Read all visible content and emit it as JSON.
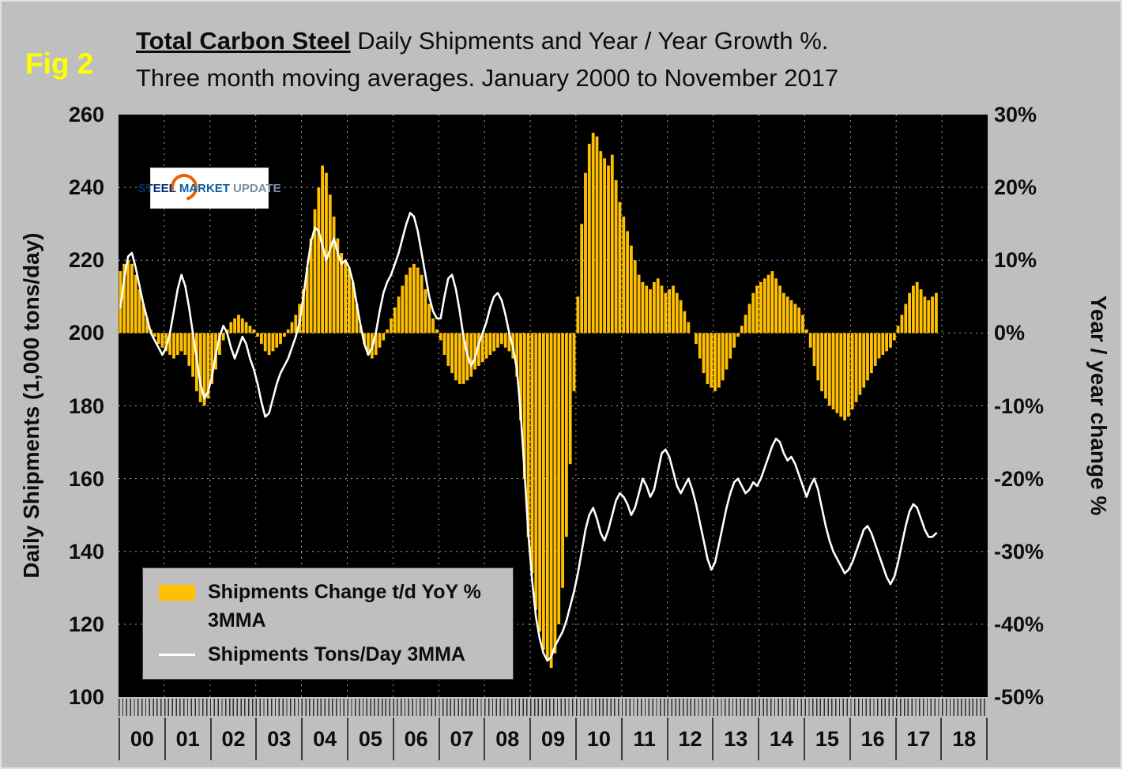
{
  "fig_label": "Fig 2",
  "title": {
    "line1_bold": "Total Carbon Steel",
    "line1_rest": " Daily Shipments and Year / Year Growth %.",
    "line2": "Three month moving averages. January 2000 to November 2017"
  },
  "logo": {
    "word1": "STEEL",
    "word2": "MARKET",
    "word3": "UPDATE"
  },
  "legend": {
    "items": [
      {
        "label": "Shipments Change t/d YoY %",
        "label2": "3MMA"
      },
      {
        "label": "Shipments Tons/Day 3MMA"
      }
    ]
  },
  "left_axis": {
    "title": "Daily Shipments (1,000 tons/day)",
    "ticks": [
      "260",
      "240",
      "220",
      "200",
      "180",
      "160",
      "140",
      "120",
      "100"
    ]
  },
  "right_axis": {
    "title": "Year / year change %",
    "ticks": [
      "30%",
      "20%",
      "10%",
      "0%",
      "-10%",
      "-20%",
      "-30%",
      "-40%",
      "-50%"
    ]
  },
  "x_axis": {
    "years": [
      "00",
      "01",
      "02",
      "03",
      "04",
      "05",
      "06",
      "07",
      "08",
      "09",
      "10",
      "11",
      "12",
      "13",
      "14",
      "15",
      "16",
      "17",
      "18"
    ]
  },
  "colors": {
    "page_bg": "#bfbfbf",
    "plot_bg": "#000000",
    "bar": "#FFC000",
    "line": "#FFFFFF",
    "fig_label": "#FFFF00"
  },
  "chart_data": {
    "type": "combo",
    "frequency": "monthly",
    "start": "2000-01",
    "end": "2017-11",
    "title": "Total Carbon Steel Daily Shipments and Year / Year Growth %. Three month moving averages. January 2000 to November 2017",
    "x_years": [
      "00",
      "01",
      "02",
      "03",
      "04",
      "05",
      "06",
      "07",
      "08",
      "09",
      "10",
      "11",
      "12",
      "13",
      "14",
      "15",
      "16",
      "17",
      "18"
    ],
    "left_axis": {
      "label": "Daily Shipments (1,000 tons/day)",
      "min": 100,
      "max": 260,
      "tick_step": 20
    },
    "right_axis": {
      "label": "Year / year change %",
      "min": -50,
      "max": 30,
      "tick_step": 10
    },
    "grid": true,
    "legend_position": "inside-bottom-left",
    "series": [
      {
        "name": "Shipments Change t/d YoY % 3MMA",
        "type": "bar",
        "axis": "right",
        "color": "#FFC000",
        "values": [
          8.5,
          9.5,
          10,
          9.5,
          8,
          6,
          4,
          2,
          0.5,
          -0.5,
          -1.5,
          -2,
          -2.5,
          -3,
          -3.5,
          -3,
          -2.5,
          -3,
          -4.5,
          -6,
          -8,
          -9.5,
          -10,
          -9,
          -7,
          -5,
          -3,
          -1,
          0.5,
          1.5,
          2,
          2.5,
          2,
          1.5,
          1,
          0.5,
          -0.5,
          -1.5,
          -2.5,
          -3,
          -2.5,
          -2,
          -1.5,
          -0.5,
          0.5,
          1.5,
          2.5,
          4,
          6,
          9,
          13,
          17,
          20,
          23,
          22,
          19,
          16,
          13,
          11,
          10,
          9,
          7,
          4,
          1,
          -1.5,
          -3,
          -3.5,
          -3,
          -2,
          -1,
          0.5,
          2,
          3.5,
          5,
          6.5,
          8,
          9,
          9.5,
          9,
          8,
          6,
          4,
          2,
          0.5,
          -1,
          -3,
          -4.5,
          -5.5,
          -6.5,
          -7,
          -7,
          -6.5,
          -6,
          -5,
          -4.5,
          -4,
          -3.5,
          -3,
          -2.5,
          -2,
          -1.5,
          -2,
          -2.5,
          -3.5,
          -6,
          -12,
          -20,
          -28,
          -33,
          -38,
          -41,
          -43.5,
          -45,
          -46,
          -44,
          -40,
          -35,
          -28,
          -18,
          -8,
          5,
          15,
          22,
          26,
          27.5,
          27,
          25,
          24,
          23,
          24.5,
          21,
          18,
          16,
          14,
          12,
          10,
          8,
          7,
          6.5,
          6,
          7,
          7.5,
          6.5,
          5.5,
          6,
          6.5,
          5.5,
          4.5,
          3,
          1.5,
          0,
          -1.5,
          -3.5,
          -5.5,
          -7,
          -7.5,
          -8,
          -7.5,
          -6.5,
          -5,
          -3.5,
          -2,
          -0.5,
          1,
          2.5,
          4,
          5.5,
          6.5,
          7,
          7.5,
          8,
          8.5,
          7.5,
          6.5,
          5.5,
          5,
          4.5,
          4,
          3.5,
          2.5,
          0.5,
          -2,
          -4.5,
          -6.5,
          -8,
          -9,
          -10,
          -10.5,
          -11,
          -11.5,
          -12,
          -11.5,
          -10.5,
          -9.5,
          -8.5,
          -7.5,
          -6.5,
          -5.5,
          -4.5,
          -3.5,
          -3,
          -2.5,
          -2,
          -1,
          1,
          2.5,
          4,
          5.5,
          6.5,
          7,
          6,
          5,
          4.5,
          5,
          5.5
        ]
      },
      {
        "name": "Shipments Tons/Day 3MMA",
        "type": "line",
        "axis": "left",
        "color": "#FFFFFF",
        "values": [
          207,
          215,
          221,
          222,
          218,
          213,
          208,
          204,
          200,
          198,
          196,
          194,
          196,
          200,
          206,
          212,
          216,
          213,
          207,
          200,
          193,
          186,
          182,
          184,
          188,
          194,
          199,
          202,
          200,
          196,
          193,
          196,
          199,
          197,
          193,
          190,
          186,
          181,
          177,
          178,
          182,
          186,
          189,
          191,
          193,
          196,
          199,
          203,
          210,
          218,
          225,
          229,
          228,
          224,
          220,
          223,
          226,
          222,
          219,
          220,
          218,
          214,
          208,
          202,
          197,
          194,
          196,
          200,
          206,
          211,
          214,
          216,
          219,
          222,
          226,
          230,
          233,
          232,
          228,
          222,
          216,
          210,
          206,
          204,
          204,
          210,
          215,
          216,
          212,
          206,
          199,
          194,
          191,
          193,
          197,
          200,
          203,
          207,
          210,
          211,
          209,
          205,
          200,
          196,
          190,
          178,
          162,
          145,
          132,
          122,
          116,
          112,
          110,
          111,
          114,
          116,
          118,
          121,
          125,
          129,
          134,
          140,
          146,
          150,
          152,
          149,
          145,
          143,
          146,
          150,
          154,
          156,
          155,
          153,
          150,
          152,
          156,
          160,
          158,
          155,
          157,
          162,
          167,
          168,
          166,
          162,
          158,
          156,
          158,
          160,
          157,
          153,
          148,
          143,
          138,
          135,
          137,
          142,
          147,
          152,
          156,
          159,
          160,
          158,
          156,
          157,
          159,
          158,
          160,
          163,
          166,
          169,
          171,
          170,
          167,
          165,
          166,
          164,
          161,
          158,
          155,
          158,
          160,
          157,
          152,
          147,
          143,
          140,
          138,
          136,
          134,
          135,
          137,
          140,
          143,
          146,
          147,
          145,
          142,
          139,
          136,
          133,
          131,
          133,
          137,
          142,
          147,
          151,
          153,
          152,
          149,
          146,
          144,
          144,
          145
        ]
      }
    ]
  }
}
